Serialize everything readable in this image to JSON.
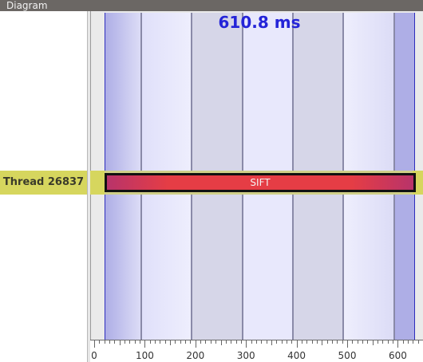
{
  "panel": {
    "title": "Diagram"
  },
  "diagram": {
    "duration_label": "610.8 ms",
    "thread_label": "Thread 26837",
    "task_label": "SIFT",
    "axis_ticks": [
      "0",
      "100",
      "200",
      "300",
      "400",
      "500",
      "600"
    ]
  },
  "colors": {
    "duration_text": "#2424d8",
    "thread_row": "#d6d65e",
    "task_bar": "#e53d45",
    "band_light": "#e8e8fc",
    "band_gray": "#d6d6e8",
    "band_blue": "#aeaee6"
  }
}
